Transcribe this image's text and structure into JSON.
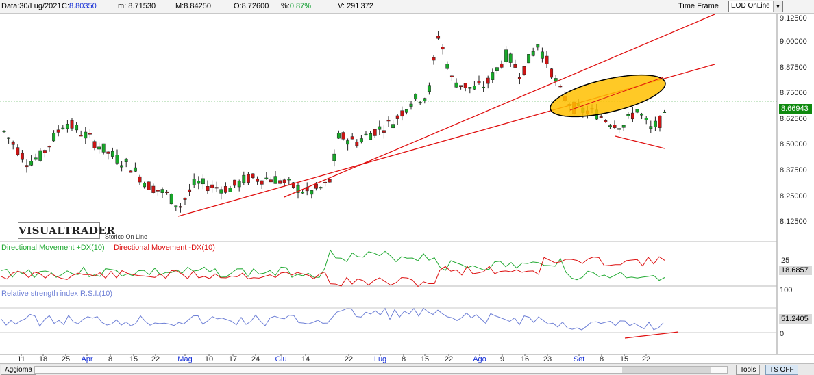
{
  "header": {
    "date_label": "Data:",
    "date_value": "30/Lug/2021",
    "close_label": "C:",
    "close_value": "8.80350",
    "min_label": "m:",
    "min_value": "8.71530",
    "max_label": "M:",
    "max_value": "8.84250",
    "open_label": "O:",
    "open_value": "8.72600",
    "pct_label": "%:",
    "pct_value": "0.87%",
    "vol_label": "V:",
    "vol_value": "291'372",
    "timeframe_label": "Time Frame",
    "timeframe_value": "EOD OnLine"
  },
  "chart": {
    "logo": "VISUALTRADER",
    "logo_sub": "Storico On Line",
    "price_axis": [
      "9.12500",
      "9.00000",
      "8.87500",
      "8.75000",
      "8.62500",
      "8.50000",
      "8.37500",
      "8.25000",
      "8.12500"
    ],
    "last_price": "8.66943",
    "dmi_label_plus": "Directional Movement +DX(10)",
    "dmi_label_minus": "Directional Movement -DX(10)",
    "dmi_axis_top": "25",
    "dmi_value": "18.6857",
    "rsi_label": "Relative strength index R.S.I.(10)",
    "rsi_axis_top": "100",
    "rsi_axis_bottom": "0",
    "rsi_value": "51.2405",
    "colors": {
      "up": "#18a82a",
      "down": "#cc1414",
      "trend": "#e01010",
      "highlight": "#ffc000",
      "plus_dx": "#22aa33",
      "minus_dx": "#dd1111",
      "rsi": "#6d7fd6",
      "price_tag": "#0f8a0f"
    }
  },
  "x_axis": [
    "11",
    "18",
    "25",
    "Apr",
    "8",
    "15",
    "22",
    "Mag",
    "10",
    "17",
    "24",
    "Giu",
    "14",
    "22",
    "Lug",
    "8",
    "15",
    "22",
    "Ago",
    "9",
    "16",
    "23",
    "Set",
    "8",
    "15",
    "22"
  ],
  "footer": {
    "update_button": "Aggiorna",
    "tools_button": "Tools",
    "ts_button": "TS OFF"
  }
}
